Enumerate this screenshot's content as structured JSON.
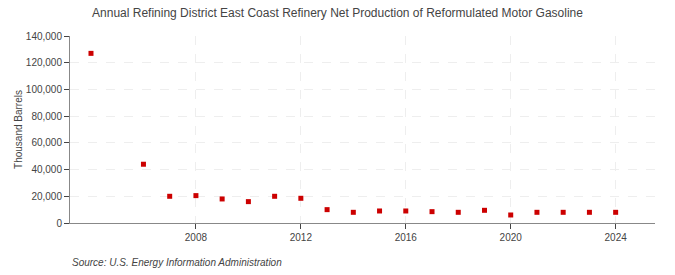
{
  "chart_data": {
    "type": "scatter",
    "title": "Annual Refining District East Coast Refinery Net Production of Reformulated Motor Gasoline",
    "y_label": "Thousand Barrels",
    "annotations": [
      "Source: U.S. Energy Information Administration"
    ],
    "x": [
      2004,
      2006,
      2007,
      2008,
      2009,
      2010,
      2011,
      2012,
      2013,
      2014,
      2015,
      2016,
      2017,
      2018,
      2019,
      2020,
      2021,
      2022,
      2023,
      2024
    ],
    "values": [
      127000,
      44000,
      20000,
      20500,
      18000,
      16000,
      20000,
      18500,
      10000,
      8000,
      9000,
      9000,
      8500,
      8000,
      9500,
      6000,
      8000,
      8000,
      8000,
      8000
    ],
    "color": "#cc0000",
    "marker": "square",
    "xlim": [
      2003.2,
      2025.5
    ],
    "xticks": [
      2008,
      2012,
      2016,
      2020,
      2024
    ],
    "ylim": [
      0,
      140000
    ],
    "yticks": [
      0,
      {
        "value": 20000,
        "label": "20,000"
      },
      {
        "value": 40000,
        "label": "40,000"
      },
      {
        "value": 60000,
        "label": "60,000"
      },
      {
        "value": 80000,
        "label": "80,000"
      },
      {
        "value": 100000,
        "label": "100,000"
      },
      {
        "value": 120000,
        "label": "120,000"
      },
      {
        "value": 140000,
        "label": "140,000"
      }
    ],
    "grid": true
  }
}
